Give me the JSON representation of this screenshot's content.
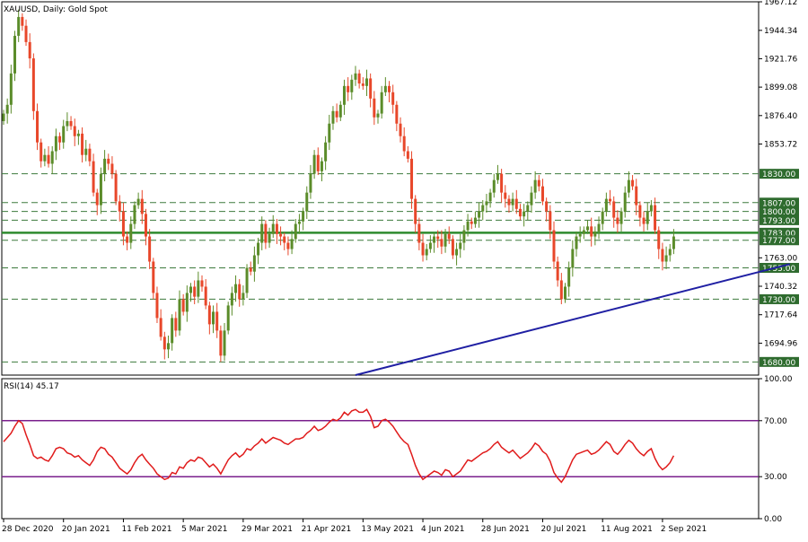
{
  "chart_data": [
    {
      "type": "candlestick",
      "title": "XAUUSD, Daily:  Gold Spot",
      "ylim": [
        1669.5,
        1967.12
      ],
      "y_ticks": [
        "1967.12",
        "1944.34",
        "1921.76",
        "1899.08",
        "1876.40",
        "1853.72",
        "1763.00",
        "1740.32",
        "1717.64",
        "1694.96"
      ],
      "x_ticks": [
        {
          "label": "28 Dec 2020",
          "index": 0
        },
        {
          "label": "20 Jan 2021",
          "index": 16
        },
        {
          "label": "11 Feb 2021",
          "index": 32
        },
        {
          "label": "5 Mar 2021",
          "index": 48
        },
        {
          "label": "29 Mar 2021",
          "index": 64
        },
        {
          "label": "21 Apr 2021",
          "index": 80
        },
        {
          "label": "13 May 2021",
          "index": 96
        },
        {
          "label": "4 Jun 2021",
          "index": 112
        },
        {
          "label": "28 Jun 2021",
          "index": 128
        },
        {
          "label": "20 Jul 2021",
          "index": 144
        },
        {
          "label": "11 Aug 2021",
          "index": 160
        },
        {
          "label": "2 Sep 2021",
          "index": 176
        }
      ],
      "levels": [
        {
          "value": 1830.0,
          "label": "1830.00"
        },
        {
          "value": 1807.0,
          "label": "1807.00"
        },
        {
          "value": 1800.0,
          "label": "1800.00"
        },
        {
          "value": 1793.0,
          "label": "1793.00"
        },
        {
          "value": 1783.0,
          "label": "1783.00"
        },
        {
          "value": 1777.0,
          "label": "1777.00"
        },
        {
          "value": 1755.0,
          "label": "1755.00"
        },
        {
          "value": 1730.0,
          "label": "1730.00"
        },
        {
          "value": 1680.0,
          "label": "1680.00"
        }
      ],
      "main_level": 1783.0,
      "trendline": {
        "from": [
          94,
          1669.5
        ],
        "to": [
          210,
          1758.0
        ]
      },
      "up_color": "#5b8c2a",
      "down_color": "#e8472a",
      "level_color": "#3d7a3d",
      "main_level_color": "#2e8b2e",
      "trendline_color": "#1f1fa3",
      "closes": [
        1878,
        1885,
        1910,
        1940,
        1955,
        1948,
        1935,
        1922,
        1880,
        1855,
        1840,
        1845,
        1838,
        1848,
        1860,
        1855,
        1868,
        1872,
        1868,
        1860,
        1862,
        1845,
        1850,
        1840,
        1815,
        1805,
        1830,
        1842,
        1838,
        1830,
        1808,
        1800,
        1780,
        1775,
        1790,
        1805,
        1810,
        1798,
        1780,
        1760,
        1735,
        1715,
        1700,
        1690,
        1695,
        1715,
        1705,
        1730,
        1720,
        1735,
        1740,
        1732,
        1745,
        1740,
        1725,
        1710,
        1720,
        1705,
        1685,
        1705,
        1725,
        1735,
        1742,
        1730,
        1735,
        1755,
        1752,
        1765,
        1775,
        1790,
        1775,
        1782,
        1790,
        1782,
        1780,
        1775,
        1770,
        1778,
        1790,
        1792,
        1800,
        1815,
        1830,
        1845,
        1832,
        1840,
        1855,
        1870,
        1880,
        1875,
        1885,
        1900,
        1895,
        1905,
        1910,
        1902,
        1900,
        1906,
        1890,
        1875,
        1878,
        1895,
        1900,
        1895,
        1885,
        1870,
        1860,
        1848,
        1842,
        1810,
        1790,
        1775,
        1765,
        1770,
        1775,
        1780,
        1778,
        1772,
        1782,
        1778,
        1765,
        1770,
        1775,
        1785,
        1792,
        1790,
        1795,
        1800,
        1805,
        1808,
        1815,
        1825,
        1830,
        1815,
        1810,
        1805,
        1810,
        1802,
        1796,
        1800,
        1805,
        1815,
        1825,
        1820,
        1808,
        1800,
        1785,
        1760,
        1745,
        1730,
        1740,
        1755,
        1770,
        1780,
        1782,
        1785,
        1788,
        1780,
        1784,
        1790,
        1800,
        1810,
        1808,
        1795,
        1790,
        1800,
        1815,
        1825,
        1820,
        1805,
        1795,
        1790,
        1800,
        1805,
        1785,
        1770,
        1760,
        1765,
        1770,
        1780
      ]
    },
    {
      "type": "line",
      "title": "RSI(14) 45.17",
      "ylim": [
        0,
        100
      ],
      "y_ticks": [
        "100.00",
        "70.00",
        "30.00",
        "0.00"
      ],
      "levels": [
        70,
        30
      ],
      "line_color": "#e01b1b",
      "level_color": "#7a1f8c",
      "values": [
        55,
        58,
        61,
        66,
        70,
        68,
        60,
        53,
        45,
        43,
        44,
        42,
        41,
        45,
        50,
        51,
        50,
        47,
        46,
        44,
        45,
        42,
        40,
        38,
        42,
        48,
        51,
        50,
        46,
        44,
        40,
        36,
        34,
        32,
        35,
        40,
        44,
        46,
        42,
        39,
        36,
        32,
        30,
        28,
        29,
        33,
        32,
        37,
        36,
        40,
        42,
        41,
        44,
        43,
        40,
        37,
        39,
        36,
        32,
        37,
        42,
        45,
        47,
        44,
        46,
        50,
        49,
        52,
        54,
        57,
        54,
        56,
        58,
        57,
        56,
        54,
        53,
        55,
        57,
        57,
        58,
        61,
        63,
        66,
        63,
        64,
        66,
        69,
        71,
        70,
        72,
        76,
        74,
        77,
        78,
        76,
        76,
        78,
        73,
        65,
        66,
        70,
        71,
        69,
        66,
        62,
        58,
        55,
        53,
        46,
        38,
        32,
        28,
        30,
        32,
        34,
        33,
        31,
        35,
        34,
        30,
        32,
        34,
        38,
        42,
        41,
        43,
        45,
        47,
        48,
        50,
        53,
        55,
        51,
        49,
        47,
        49,
        46,
        43,
        45,
        47,
        50,
        54,
        52,
        48,
        46,
        41,
        33,
        29,
        26,
        30,
        36,
        42,
        46,
        47,
        48,
        49,
        46,
        47,
        49,
        52,
        55,
        53,
        48,
        46,
        49,
        53,
        56,
        54,
        50,
        47,
        45,
        48,
        50,
        43,
        38,
        35,
        37,
        40,
        45
      ]
    }
  ]
}
